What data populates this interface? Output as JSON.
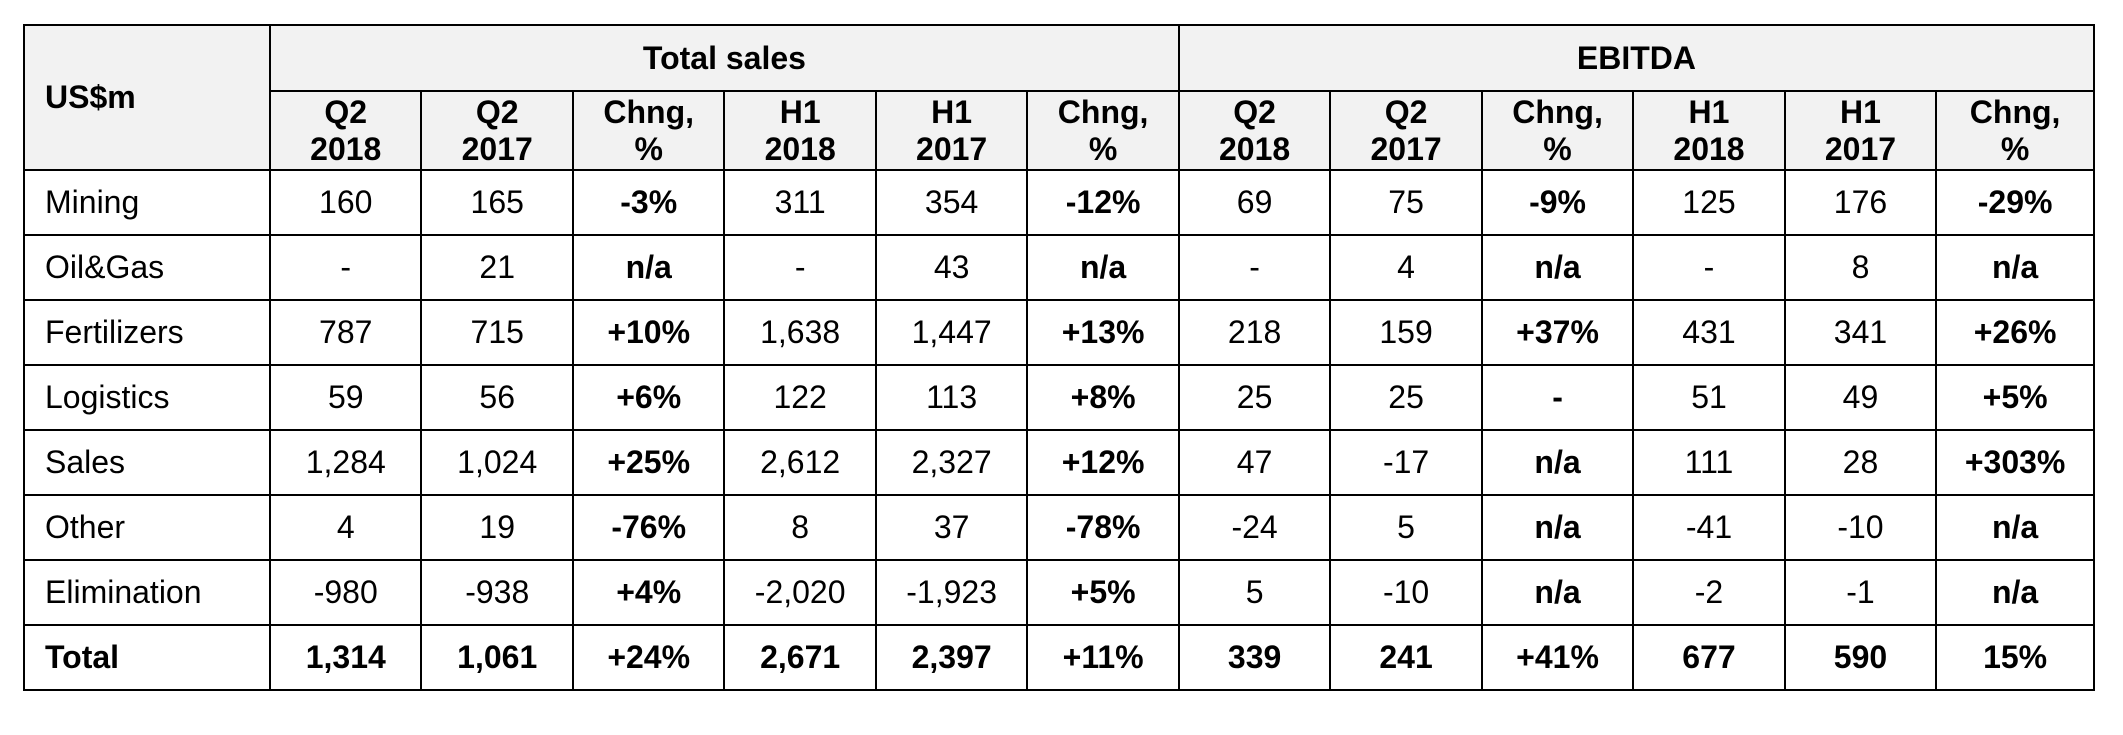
{
  "table": {
    "unit_label": "US$m",
    "groups": [
      {
        "label": "Total sales"
      },
      {
        "label": "EBITDA"
      }
    ],
    "columns": [
      {
        "l1": "Q2",
        "l2": "2018"
      },
      {
        "l1": "Q2",
        "l2": "2017"
      },
      {
        "l1": "Chng,",
        "l2": "%"
      },
      {
        "l1": "H1",
        "l2": "2018"
      },
      {
        "l1": "H1",
        "l2": "2017"
      },
      {
        "l1": "Chng,",
        "l2": "%"
      },
      {
        "l1": "Q2",
        "l2": "2018"
      },
      {
        "l1": "Q2",
        "l2": "2017"
      },
      {
        "l1": "Chng,",
        "l2": "%"
      },
      {
        "l1": "H1",
        "l2": "2018"
      },
      {
        "l1": "H1",
        "l2": "2017"
      },
      {
        "l1": "Chng,",
        "l2": "%"
      }
    ],
    "rows": [
      {
        "label": "Mining",
        "cells": [
          "160",
          "165",
          "-3%",
          "311",
          "354",
          "-12%",
          "69",
          "75",
          "-9%",
          "125",
          "176",
          "-29%"
        ]
      },
      {
        "label": "Oil&Gas",
        "cells": [
          "-",
          "21",
          "n/a",
          "-",
          "43",
          "n/a",
          "-",
          "4",
          "n/a",
          "-",
          "8",
          "n/a"
        ]
      },
      {
        "label": "Fertilizers",
        "cells": [
          "787",
          "715",
          "+10%",
          "1,638",
          "1,447",
          "+13%",
          "218",
          "159",
          "+37%",
          "431",
          "341",
          "+26%"
        ]
      },
      {
        "label": "Logistics",
        "cells": [
          "59",
          "56",
          "+6%",
          "122",
          "113",
          "+8%",
          "25",
          "25",
          "-",
          "51",
          "49",
          "+5%"
        ]
      },
      {
        "label": "Sales",
        "cells": [
          "1,284",
          "1,024",
          "+25%",
          "2,612",
          "2,327",
          "+12%",
          "47",
          "-17",
          "n/a",
          "111",
          "28",
          "+303%"
        ]
      },
      {
        "label": "Other",
        "cells": [
          "4",
          "19",
          "-76%",
          "8",
          "37",
          "-78%",
          "-24",
          "5",
          "n/a",
          "-41",
          "-10",
          "n/a"
        ]
      },
      {
        "label": "Elimination",
        "cells": [
          "-980",
          "-938",
          "+4%",
          "-2,020",
          "-1,923",
          "+5%",
          "5",
          "-10",
          "n/a",
          "-2",
          "-1",
          "n/a"
        ]
      },
      {
        "label": "Total",
        "cells": [
          "1,314",
          "1,061",
          "+24%",
          "2,671",
          "2,397",
          "+11%",
          "339",
          "241",
          "+41%",
          "677",
          "590",
          "15%"
        ]
      }
    ]
  }
}
